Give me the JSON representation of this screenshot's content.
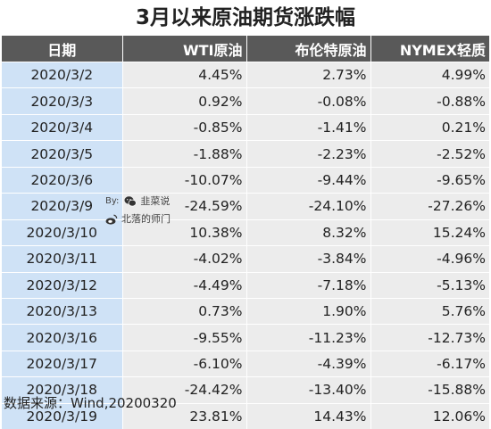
{
  "title": "3月以来原油期货涨跌幅",
  "headers": [
    "日期",
    "WTI原油",
    "布伦特原油",
    "NYMEX轻质"
  ],
  "rows": [
    {
      "date": "2020/3/2",
      "wti": "4.45%",
      "brent": "2.73%",
      "nymex": "4.99%"
    },
    {
      "date": "2020/3/3",
      "wti": "0.92%",
      "brent": "-0.08%",
      "nymex": "-0.88%"
    },
    {
      "date": "2020/3/4",
      "wti": "-0.85%",
      "brent": "-1.41%",
      "nymex": "0.21%"
    },
    {
      "date": "2020/3/5",
      "wti": "-1.88%",
      "brent": "-2.23%",
      "nymex": "-2.52%"
    },
    {
      "date": "2020/3/6",
      "wti": "-10.07%",
      "brent": "-9.44%",
      "nymex": "-9.65%"
    },
    {
      "date": "2020/3/9",
      "wti": "-24.59%",
      "brent": "-24.10%",
      "nymex": "-27.26%"
    },
    {
      "date": "2020/3/10",
      "wti": "10.38%",
      "brent": "8.32%",
      "nymex": "15.24%"
    },
    {
      "date": "2020/3/11",
      "wti": "-4.02%",
      "brent": "-3.84%",
      "nymex": "-4.96%"
    },
    {
      "date": "2020/3/12",
      "wti": "-4.49%",
      "brent": "-7.18%",
      "nymex": "-5.13%"
    },
    {
      "date": "2020/3/13",
      "wti": "0.73%",
      "brent": "1.90%",
      "nymex": "5.76%"
    },
    {
      "date": "2020/3/16",
      "wti": "-9.55%",
      "brent": "-11.23%",
      "nymex": "-12.73%"
    },
    {
      "date": "2020/3/17",
      "wti": "-6.10%",
      "brent": "-4.39%",
      "nymex": "-6.17%"
    },
    {
      "date": "2020/3/18",
      "wti": "-24.42%",
      "brent": "-13.40%",
      "nymex": "-15.88%"
    },
    {
      "date": "2020/3/19",
      "wti": "23.81%",
      "brent": "14.43%",
      "nymex": "12.06%"
    }
  ],
  "source": "数据来源：Wind,20200320",
  "watermark": {
    "by": "By:",
    "wechat_name": "韭菜说",
    "weibo_name": "北落的师门",
    "wechat_icon": "wechat-icon",
    "weibo_icon": "weibo-icon"
  },
  "colors": {
    "header_bg": "#595959",
    "date_col_bg": "#cfe2f6",
    "value_bg": "#ececec"
  }
}
